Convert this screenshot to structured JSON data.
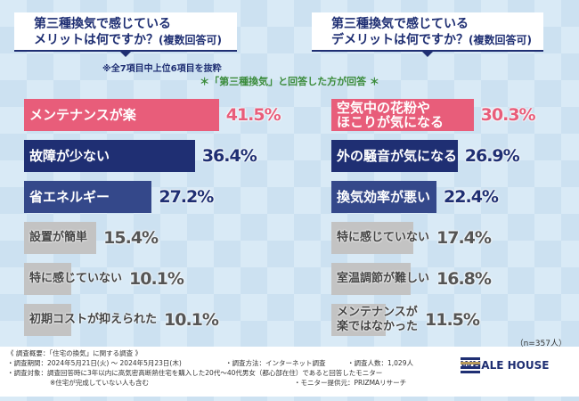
{
  "questions": {
    "merit": {
      "line1": "第三種換気で感じている",
      "line2": "メリットは何ですか？",
      "suffix": "(複数回答可)"
    },
    "demerit": {
      "line1": "第三種換気で感じている",
      "line2": "デメリットは何ですか？",
      "suffix": "(複数回答可)"
    }
  },
  "note": "※全7項目中上位6項目を抜粋",
  "condition": "＊「第三種換気」と回答した方が回答 ＊",
  "sample_size": "（n=357人）",
  "colors": {
    "pink": "#e85d7a",
    "navy": "#1f2f73",
    "blue": "#34488a",
    "gray": "#c3c3c3"
  },
  "chart_data": [
    {
      "type": "bar",
      "title": "第三種換気で感じているメリットは何ですか？(複数回答可)",
      "categories": [
        "メンテナンスが楽",
        "故障が少ない",
        "省エネルギー",
        "設置が簡単",
        "特に感じていない",
        "初期コストが抑えられた"
      ],
      "values": [
        41.5,
        36.4,
        27.2,
        15.4,
        10.1,
        10.1
      ],
      "labels": [
        "41.5%",
        "36.4%",
        "27.2%",
        "15.4%",
        "10.1%",
        "10.1%"
      ],
      "xlim": [
        0,
        45
      ]
    },
    {
      "type": "bar",
      "title": "第三種換気で感じているデメリットは何ですか？(複数回答可)",
      "categories": [
        "空気中の花粉やほこりが気になる",
        "外の騒音が気になる",
        "換気効率が悪い",
        "特に感じていない",
        "室温調節が難しい",
        "メンテナンスが楽ではなかった"
      ],
      "display_lines": [
        [
          "空気中の花粉や",
          "ほこりが気になる"
        ],
        [
          "外の騒音が気になる"
        ],
        [
          "換気効率が悪い"
        ],
        [
          "特に感じていない"
        ],
        [
          "室温調節が難しい"
        ],
        [
          "メンテナンスが",
          "楽ではなかった"
        ]
      ],
      "values": [
        30.3,
        26.9,
        22.4,
        17.4,
        16.8,
        11.5
      ],
      "labels": [
        "30.3%",
        "26.9%",
        "22.4%",
        "17.4%",
        "16.8%",
        "11.5%"
      ],
      "xlim": [
        0,
        45
      ]
    }
  ],
  "footer": {
    "summary": "《 調査概要：「住宅の換気」に関する調査 》",
    "period": "・調査期間：2024年5月21日(火) ～ 2024年5月23日(木)",
    "method": "・調査方法：インターネット調査",
    "count": "・調査人数：1,029人",
    "target": "・調査対象：調査回答時に3年以内に高気密高断熱住宅を購入した20代～40代男女（都心部在住）であると回答したモニター",
    "target_note": "※住宅が完成していない人も含む",
    "provider": "・モニター提供元：PRIZMAリサーチ"
  },
  "logo": "WHALE HOUSE"
}
